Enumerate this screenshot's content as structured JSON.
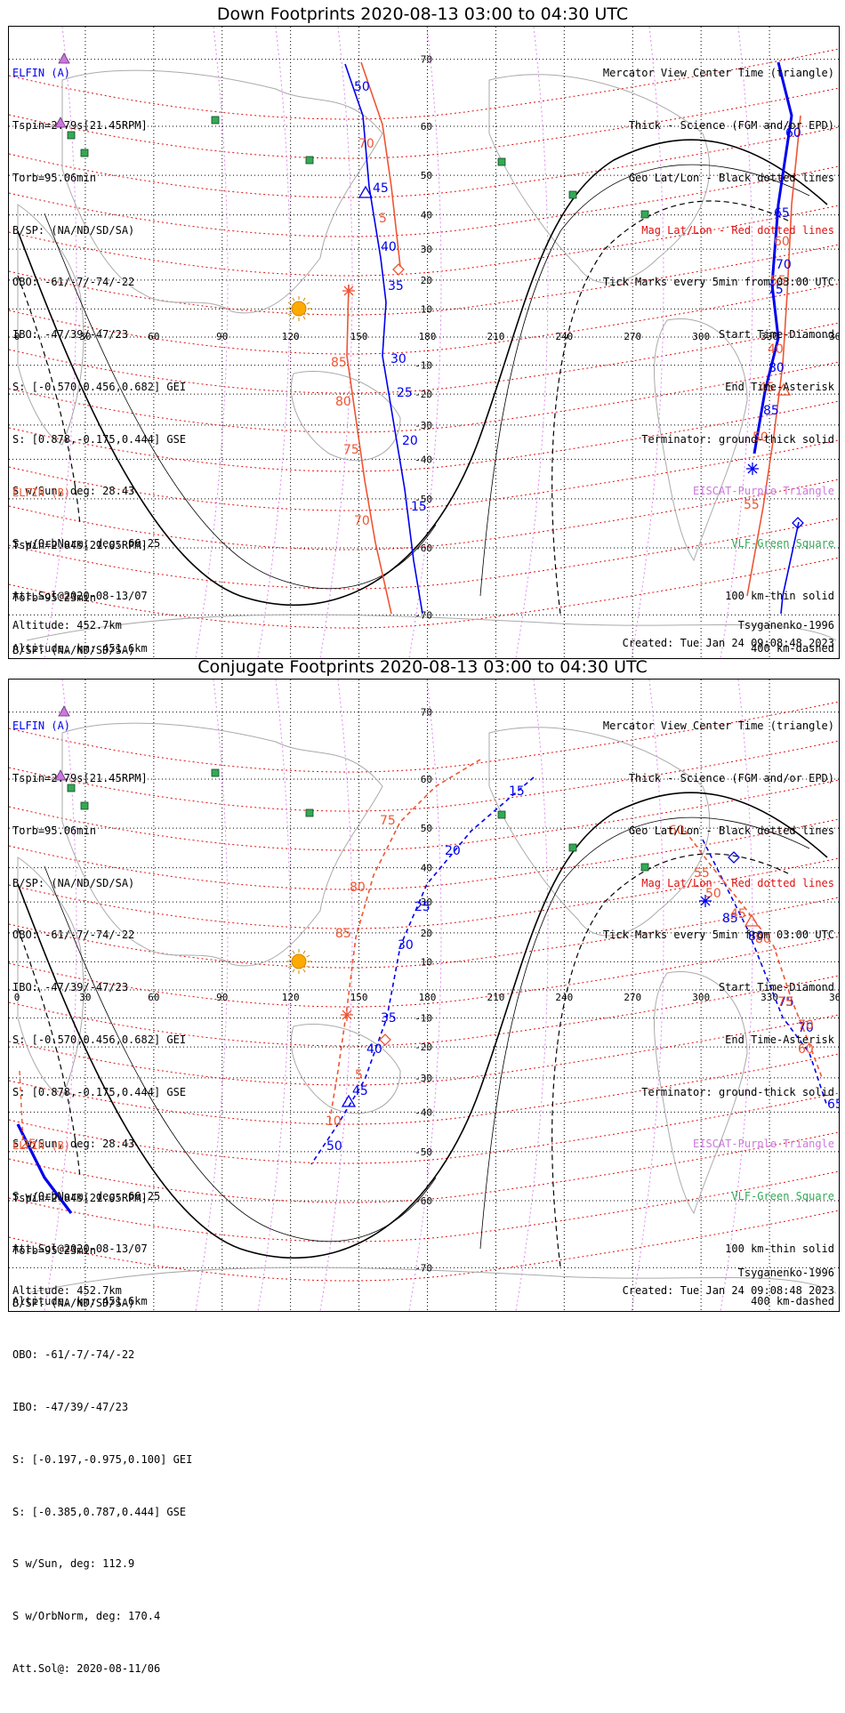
{
  "panels": [
    {
      "title": "Down Footprints 2020-08-13 03:00 to 04:30 UTC",
      "elfin_a": {
        "label": "ELFIN (A)",
        "lines": [
          "Tspin=2.79s[21.45RPM]",
          "Torb=95.06min",
          "B/SP: (NA/ND/SD/SA)",
          "OBO: -61/-7/-74/-22",
          "IBO: -47/39/-47/23",
          "S: [-0.570,0.456,0.682] GEI",
          "S: [0.878,-0.175,0.444] GSE",
          "S w/Sun, deg: 28.43",
          "S w/OrbNorm, deg: 66.25",
          "Att.Sol@2020-08-13/07",
          "Altitude, km: 451.6km"
        ]
      },
      "elfin_b": {
        "label": "ELFIN (B)",
        "lines": [
          "Tspin=2.84s[21.05RPM]",
          "Torb=95.23min",
          "B/SP: (NA/ND/SD/SA)",
          "OBO: -61/-7/-74/-22",
          "IBO: -47/39/-47/23",
          "S: [-0.197,-0.975,0.100] GEI",
          "S: [-0.385,0.787,0.444] GSE",
          "S w/Sun, deg: 112.9",
          "S w/OrbNorm, deg: 170.4",
          "Att.Sol@: 2020-08-11/06",
          "Altitude: 452.7km"
        ]
      },
      "legend": [
        {
          "text": "Mercator View Center Time (triangle)",
          "color": "#000000"
        },
        {
          "text": "Thick - Science (FGM and/or EPD)",
          "color": "#000000"
        },
        {
          "text": "Geo Lat/Lon - Black dotted lines",
          "color": "#000000"
        },
        {
          "text": "Mag Lat/Lon - Red dotted lines",
          "color": "#e01010"
        },
        {
          "text": "Tick Marks every 5min from 03:00 UTC",
          "color": "#000000"
        },
        {
          "text": "Start Time-Diamond",
          "color": "#000000"
        },
        {
          "text": "End Time-Asterisk",
          "color": "#000000"
        },
        {
          "text": "Terminator: ground-thick solid",
          "color": "#000000"
        },
        {
          "text": "EISCAT-Purple Triangle",
          "color": "#cc77dd"
        },
        {
          "text": "VLF-Green Square",
          "color": "#33aa55"
        },
        {
          "text": "100 km-thin solid",
          "color": "#000000"
        },
        {
          "text": "400 km-dashed",
          "color": "#000000"
        }
      ],
      "model": "Tsyganenko-1996",
      "created": "Created: Tue Jan 24 09:08:48 2023",
      "lon_ticks": [
        "0",
        "30",
        "60",
        "90",
        "120",
        "150",
        "180",
        "210",
        "240",
        "270",
        "300",
        "330",
        "360"
      ],
      "lat_ticks": [
        "70",
        "60",
        "50",
        "40",
        "30",
        "20",
        "10",
        "-10",
        "-20",
        "-30",
        "-40",
        "-50",
        "-60",
        "-70"
      ],
      "track_a_labels": [
        "50",
        "45",
        "40",
        "35",
        "30",
        "25",
        "20",
        "15",
        "60",
        "65",
        "70",
        "75",
        "80",
        "85"
      ],
      "track_b_labels": [
        "70",
        "5",
        "85",
        "80",
        "75",
        "70",
        "60",
        "55",
        "40",
        "45",
        "50",
        "55"
      ]
    },
    {
      "title": "Conjugate Footprints 2020-08-13 03:00 to 04:30 UTC",
      "model": "Tsyganenko-1996",
      "created": "Created: Tue Jan 24 09:08:48 2023",
      "track_a_labels": [
        "15",
        "20",
        "25",
        "30",
        "35",
        "40",
        "45",
        "50",
        "65",
        "70",
        "75",
        "80",
        "85"
      ],
      "track_b_labels": [
        "75",
        "80",
        "85",
        "10",
        "5",
        "60",
        "55",
        "50",
        "45",
        "80",
        "75",
        "70",
        "60",
        "25"
      ]
    }
  ],
  "colors": {
    "elfin_a": "#0000ee",
    "elfin_b": "#ee5533",
    "mag_grid": "#e01010",
    "eiscat": "#cc77dd",
    "vlf": "#33aa55",
    "sun": "#ffaa00"
  },
  "icons": [
    "sun-icon",
    "vlf-square-icon",
    "eiscat-triangle-icon",
    "start-diamond-icon",
    "end-asterisk-icon",
    "view-center-triangle-icon"
  ]
}
